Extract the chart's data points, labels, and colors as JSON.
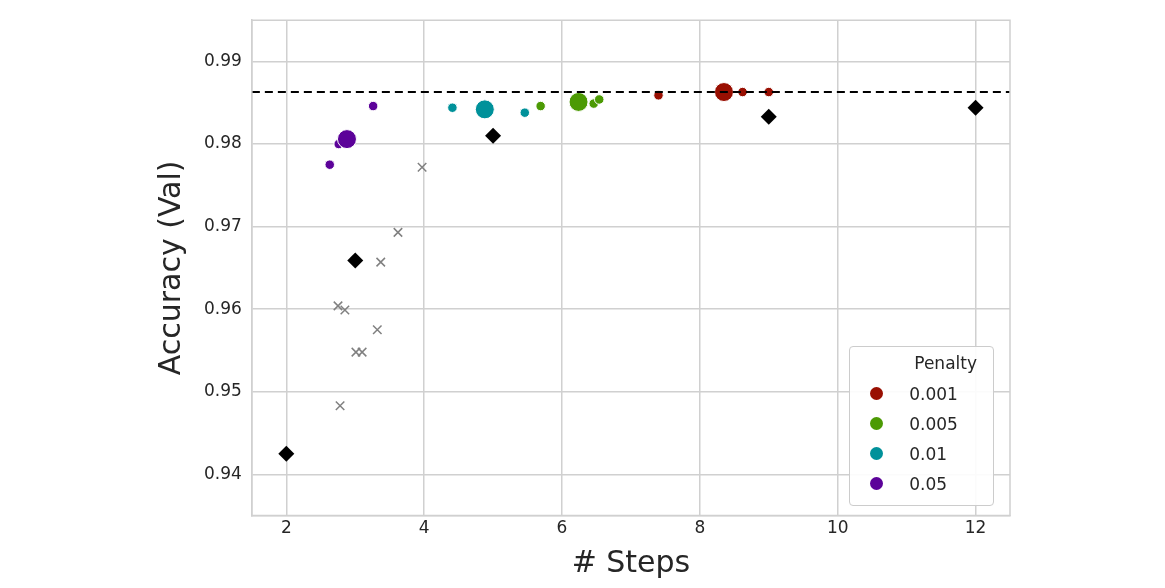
{
  "chart_data": {
    "type": "scatter",
    "xlabel": "# Steps",
    "ylabel": "Accuracy (Val)",
    "xlim": [
      1.5,
      12.5
    ],
    "xticks": [
      2,
      4,
      6,
      8,
      10,
      12
    ],
    "ylim": [
      0.935,
      0.995
    ],
    "yticks": [
      0.94,
      0.95,
      0.96,
      0.97,
      0.98,
      0.99
    ],
    "grid": true,
    "legend": "bottom right",
    "legend_title": "Penalty",
    "ref_lines": [
      {
        "axis": "y",
        "value": 0.9863,
        "label": null,
        "color": "#000000",
        "line_style": "dashed"
      }
    ],
    "series": [
      {
        "name": "0.001",
        "type": "bubble",
        "marker": "circle",
        "color": "#990f02",
        "x": [
          7.4,
          8.35,
          8.62,
          9.0
        ],
        "values": [
          0.9859,
          0.9863,
          0.9863,
          0.9863
        ],
        "sizes": [
          0.25,
          1,
          0.25,
          0.25
        ]
      },
      {
        "name": "0.005",
        "type": "bubble",
        "marker": "circle",
        "color": "#4c9a04",
        "x": [
          5.69,
          6.24,
          6.46,
          6.54
        ],
        "values": [
          0.9846,
          0.9851,
          0.9849,
          0.9854
        ],
        "sizes": [
          0.25,
          1,
          0.25,
          0.25
        ]
      },
      {
        "name": "0.01",
        "type": "bubble",
        "marker": "circle",
        "color": "#00919a",
        "x": [
          4.41,
          4.88,
          5.46
        ],
        "values": [
          0.9844,
          0.9842,
          0.9838
        ],
        "sizes": [
          0.25,
          1,
          0.25
        ]
      },
      {
        "name": "0.05",
        "type": "bubble",
        "marker": "circle",
        "color": "#5c0299",
        "x": [
          2.63,
          2.76,
          2.88,
          3.26
        ],
        "values": [
          0.9775,
          0.98,
          0.9806,
          0.9846
        ],
        "sizes": [
          0.25,
          0.25,
          1,
          0.25
        ]
      },
      {
        "type": "scatter",
        "marker": "diamond",
        "color": "#000000",
        "x": [
          2,
          3,
          5,
          9,
          12
        ],
        "values": [
          0.9425,
          0.9659,
          0.981,
          0.9833,
          0.9844
        ]
      },
      {
        "type": "scatter",
        "marker": "cross",
        "color": "#808080",
        "x": [
          3.97,
          3.62,
          3.37,
          2.75,
          2.85,
          3.32,
          3.01,
          3.1,
          2.78
        ],
        "values": [
          0.9772,
          0.9693,
          0.9657,
          0.9604,
          0.9599,
          0.9575,
          0.9548,
          0.9548,
          0.9483
        ]
      }
    ]
  }
}
